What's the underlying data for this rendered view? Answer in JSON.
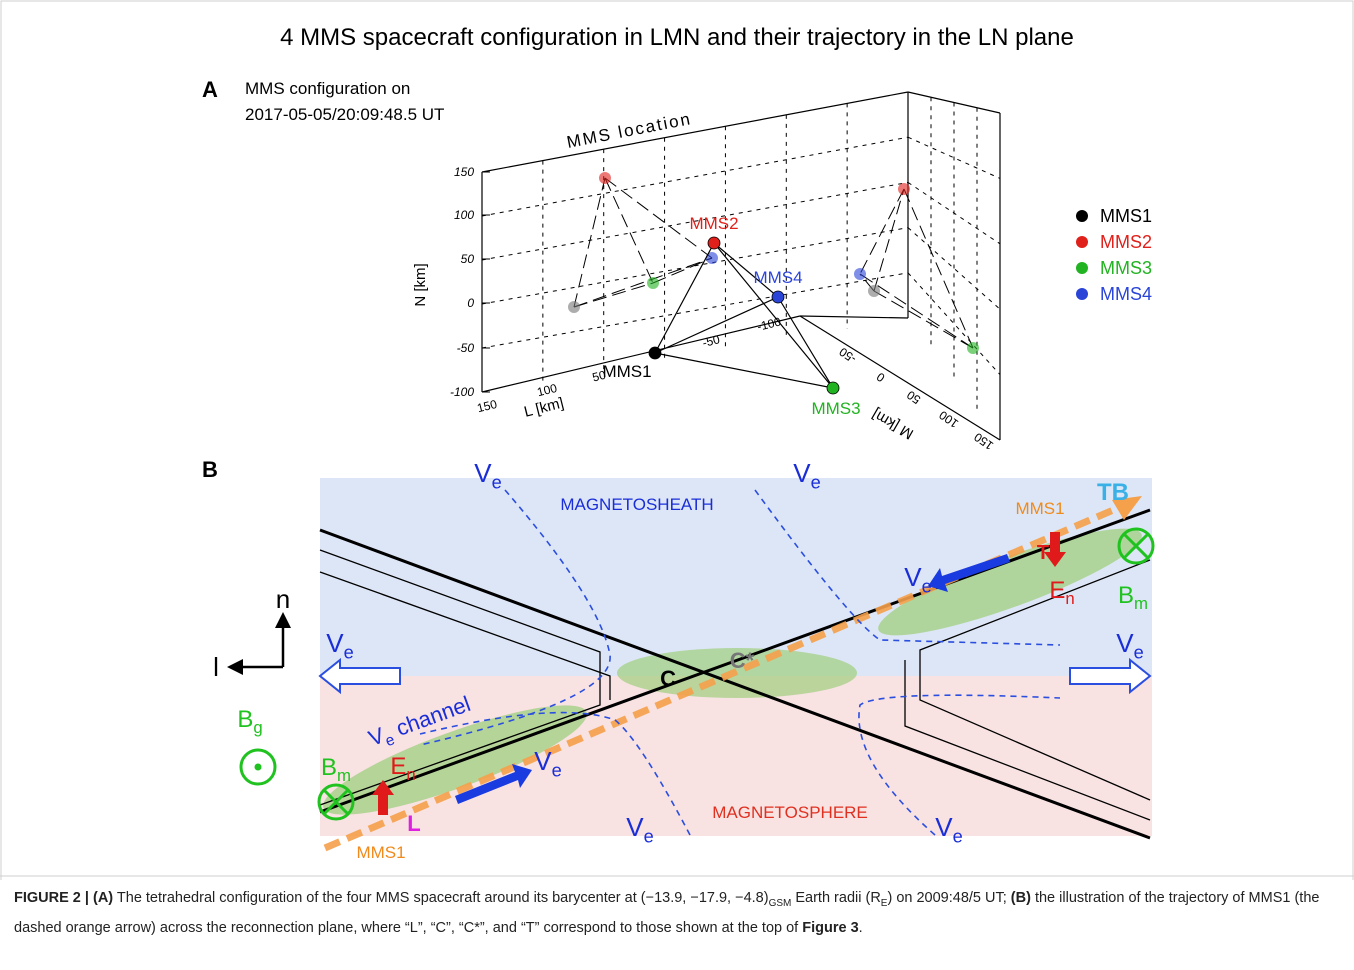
{
  "figure": {
    "title": "4 MMS spacecraft configuration in LMN and their trajectory in the LN plane",
    "panel_a": {
      "label": "A",
      "subtitle_lines": [
        "MMS configuration on",
        "2017-05-05/20:09:48.5 UT"
      ],
      "plot_title": "MMS location",
      "n_axis": {
        "label": "N [km]",
        "ticks": [
          "150",
          "100",
          "50",
          "0",
          "-50",
          "-100"
        ]
      },
      "l_axis": {
        "label": "L [km]",
        "ticks": [
          "150",
          "100",
          "50",
          "-50",
          "-100"
        ]
      },
      "m_axis": {
        "label": "M [km]",
        "ticks": [
          "-50",
          "0",
          "50",
          "100",
          "150"
        ]
      },
      "spacecraft": [
        {
          "name": "MMS1",
          "color": "#000000"
        },
        {
          "name": "MMS2",
          "color": "#e0201a"
        },
        {
          "name": "MMS3",
          "color": "#22b322"
        },
        {
          "name": "MMS4",
          "color": "#2a44d8"
        }
      ]
    },
    "panel_b": {
      "label": "B",
      "labels": [
        {
          "text": "MAGNETOSHEATH",
          "color": "#1a2ed8"
        },
        {
          "text": "MAGNETOSPHERE",
          "color": "#e03020"
        },
        {
          "text": "TB",
          "color": "#39b0e6"
        },
        {
          "text": "MMS1",
          "color": "#f08a1c"
        },
        {
          "text": "MMS1",
          "color": "#f08a1c"
        },
        {
          "text": "T",
          "color": "#e01a1a"
        },
        {
          "text": "L",
          "color": "#e020e0"
        },
        {
          "text": "C",
          "color": "#000000"
        },
        {
          "text": "C*",
          "color": "#777777"
        },
        {
          "text": "E",
          "sub": "n",
          "color": "#e01a1a"
        },
        {
          "text": "E",
          "sub": "n",
          "color": "#e01a1a"
        },
        {
          "text": "B",
          "sub": "m",
          "color": "#1fc21f"
        },
        {
          "text": "B",
          "sub": "m",
          "color": "#1fc21f"
        },
        {
          "text": "B",
          "sub": "g",
          "color": "#1fc21f"
        },
        {
          "text": "V",
          "sub": "e",
          "color": "#1a2ed8"
        },
        {
          "text": "V",
          "sub": "e",
          "color": "#1a2ed8"
        },
        {
          "text": "V",
          "sub": "e",
          "color": "#1a2ed8"
        },
        {
          "text": "V",
          "sub": "e",
          "color": "#1a2ed8"
        },
        {
          "text": "V",
          "sub": "e",
          "color": "#1a2ed8"
        },
        {
          "text": "V",
          "sub": "e",
          "color": "#1a2ed8"
        },
        {
          "text": "V",
          "sub": "e",
          "color": "#1a2ed8"
        },
        {
          "text": "V",
          "sub": "e",
          "color": "#1a2ed8"
        },
        {
          "text": "V",
          "sub": "e",
          "tail": " channel",
          "color": "#1a2ed8"
        },
        {
          "text": "n",
          "color": "#000000"
        },
        {
          "text": "l",
          "color": "#000000"
        }
      ]
    },
    "caption": {
      "segments": [
        "FIGURE 2 | (A)",
        " The tetrahedral configuration of the four MMS spacecraft around its barycenter at (−13.9, −17.9, −4.8)",
        "GSM",
        " Earth radii (R",
        "E",
        ") on 2009:48/5 UT; ",
        "(B)",
        " the illustration of the trajectory of MMS1 (the dashed orange arrow) across the reconnection plane, where “L”, “C”, “C*”, and “T” correspond to those shown at the top of ",
        "Figure 3",
        "."
      ]
    }
  }
}
